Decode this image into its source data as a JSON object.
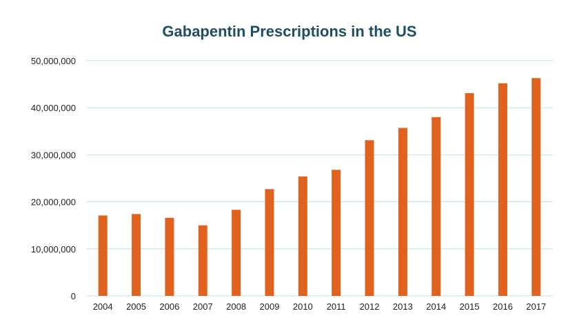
{
  "chart_data": {
    "type": "bar",
    "title": "Gabapentin Prescriptions in the US",
    "xlabel": "",
    "ylabel": "",
    "categories": [
      "2004",
      "2005",
      "2006",
      "2007",
      "2008",
      "2009",
      "2010",
      "2011",
      "2012",
      "2013",
      "2014",
      "2015",
      "2016",
      "2017"
    ],
    "values": [
      17100000,
      17400000,
      16600000,
      15000000,
      18300000,
      22700000,
      25400000,
      26800000,
      33100000,
      35700000,
      38000000,
      43100000,
      45200000,
      46300000
    ],
    "ylim": [
      0,
      50000000
    ],
    "yticks": [
      "0",
      "10,000,000",
      "20,000,000",
      "30,000,000",
      "40,000,000",
      "50,000,000"
    ],
    "ytick_values": [
      0,
      10000000,
      20000000,
      30000000,
      40000000,
      50000000
    ],
    "grid": true,
    "legend": "none",
    "colors": {
      "bar": "#e0621f",
      "grid": "#bfe3ea",
      "title": "#1f4e64",
      "text": "#222222"
    }
  }
}
